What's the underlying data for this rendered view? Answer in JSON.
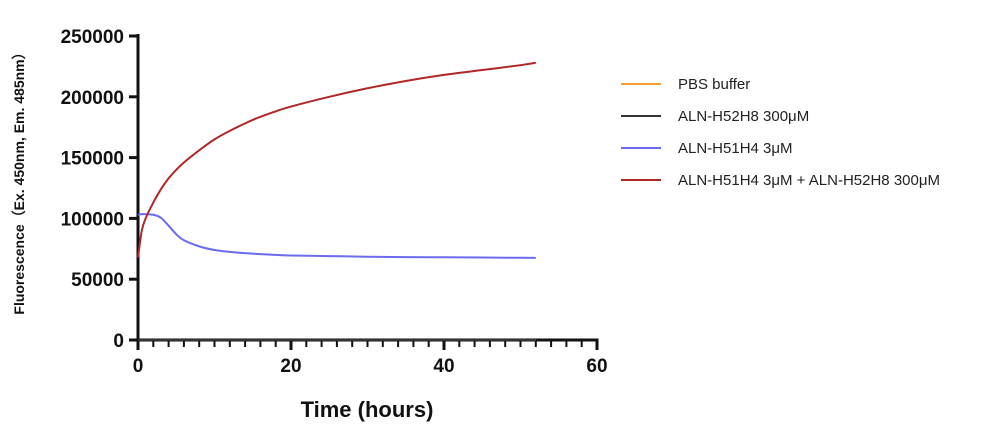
{
  "chart_data": {
    "type": "line",
    "title": "",
    "xlabel": "Time (hours)",
    "ylabel": "Fluorescence（Ex. 450nm, Em. 485nm）",
    "xlim": [
      0,
      60
    ],
    "ylim": [
      0,
      250000
    ],
    "xticks": [
      "0",
      "20",
      "40",
      "60"
    ],
    "yticks": [
      "0",
      "50000",
      "100000",
      "150000",
      "200000",
      "250000"
    ],
    "grid": false,
    "legend_position": "right",
    "series": [
      {
        "name": "PBS buffer",
        "color": "#f0a030",
        "x": [
          0,
          52
        ],
        "y": [
          0,
          0
        ]
      },
      {
        "name": "ALN-H52H8 300μM",
        "color": "#333333",
        "x": [
          0,
          52
        ],
        "y": [
          0,
          0
        ]
      },
      {
        "name": "ALN-H51H4 3μM",
        "color": "#6a6cf0",
        "x": [
          0,
          0.5,
          1,
          2,
          3,
          4,
          5,
          6,
          8,
          10,
          12,
          15,
          18,
          20,
          25,
          30,
          35,
          40,
          45,
          50,
          52
        ],
        "y": [
          103000,
          103500,
          103500,
          103000,
          100500,
          94000,
          87000,
          82000,
          77000,
          74000,
          72500,
          71000,
          70000,
          69500,
          69000,
          68500,
          68200,
          68000,
          67800,
          67600,
          67500
        ]
      },
      {
        "name": "ALN-H51H4 3μM + ALN-H52H8 300μM",
        "color": "#b02828",
        "x": [
          0,
          0.5,
          1,
          2,
          3,
          4,
          5,
          6,
          8,
          10,
          12,
          15,
          18,
          20,
          25,
          30,
          35,
          40,
          45,
          50,
          52
        ],
        "y": [
          68000,
          90000,
          100000,
          113000,
          124000,
          133000,
          140000,
          146000,
          156000,
          165000,
          172000,
          181000,
          188000,
          192000,
          200000,
          207000,
          213000,
          218000,
          222000,
          226000,
          228000
        ]
      }
    ]
  }
}
